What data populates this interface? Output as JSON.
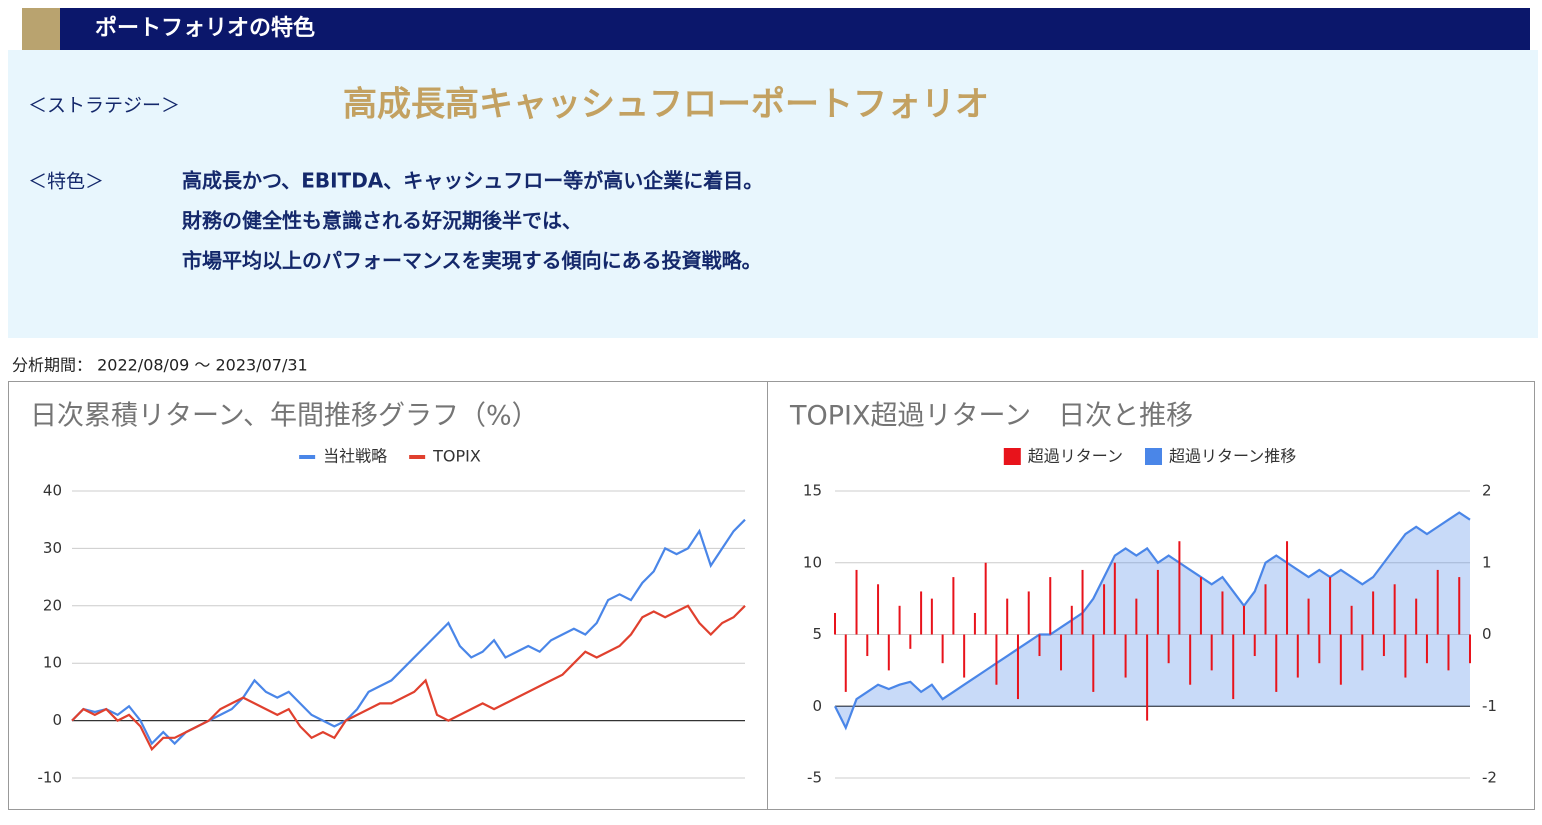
{
  "header": {
    "title": "ポートフォリオの特色"
  },
  "strategy": {
    "label": "＜ストラテジー＞",
    "name": "高成長高キャッシュフローポートフォリオ"
  },
  "features": {
    "label": "＜特色＞",
    "lines": [
      "高成長かつ、EBITDA、キャッシュフロー等が高い企業に着目。",
      "財務の健全性も意識される好況期後半では、",
      "市場平均以上のパフォーマンスを実現する傾向にある投資戦略。"
    ]
  },
  "period": "分析期間： 2022/08/09 ～ 2023/07/31",
  "chart_data": [
    {
      "type": "line",
      "title": "日次累積リターン、年間推移グラフ（%）",
      "ylim": [
        -10,
        40
      ],
      "yticks": [
        -10,
        0,
        10,
        20,
        30,
        40
      ],
      "grid": true,
      "series": [
        {
          "name": "当社戦略",
          "color": "#4a86e8",
          "values": [
            0,
            2,
            1.5,
            2,
            1,
            2.5,
            0,
            -4,
            -2,
            -4,
            -2,
            -1,
            0,
            1,
            2,
            4,
            7,
            5,
            4,
            5,
            3,
            1,
            0,
            -1,
            0,
            2,
            5,
            6,
            7,
            9,
            11,
            13,
            15,
            17,
            13,
            11,
            12,
            14,
            11,
            12,
            13,
            12,
            14,
            15,
            16,
            15,
            17,
            21,
            22,
            21,
            24,
            26,
            30,
            29,
            30,
            33,
            27,
            30,
            33,
            35
          ]
        },
        {
          "name": "TOPIX",
          "color": "#e0402e",
          "values": [
            0,
            2,
            1,
            2,
            0,
            1,
            -1,
            -5,
            -3,
            -3,
            -2,
            -1,
            0,
            2,
            3,
            4,
            3,
            2,
            1,
            2,
            -1,
            -3,
            -2,
            -3,
            0,
            1,
            2,
            3,
            3,
            4,
            5,
            7,
            1,
            0,
            1,
            2,
            3,
            2,
            3,
            4,
            5,
            6,
            7,
            8,
            10,
            12,
            11,
            12,
            13,
            15,
            18,
            19,
            18,
            19,
            20,
            17,
            15,
            17,
            18,
            20
          ]
        }
      ]
    },
    {
      "type": "combo",
      "title": "TOPIX超過リターン　日次と推移",
      "ylim": [
        -5,
        15
      ],
      "yticks": [
        -5,
        0,
        5,
        10,
        15
      ],
      "y2lim": [
        -2,
        2
      ],
      "y2ticks": [
        -2,
        -1,
        0,
        1,
        2
      ],
      "grid": true,
      "series": [
        {
          "name": "超過リターン",
          "type": "bar",
          "axis": "y2",
          "color": "#e8131b",
          "values": [
            0.3,
            -0.8,
            0.9,
            -0.3,
            0.7,
            -0.5,
            0.4,
            -0.2,
            0.6,
            0.5,
            -0.4,
            0.8,
            -0.6,
            0.3,
            1.0,
            -0.7,
            0.5,
            -0.9,
            0.6,
            -0.3,
            0.8,
            -0.5,
            0.4,
            0.9,
            -0.8,
            0.7,
            1.0,
            -0.6,
            0.5,
            -1.2,
            0.9,
            -0.4,
            1.3,
            -0.7,
            0.8,
            -0.5,
            0.6,
            -0.9,
            0.4,
            -0.3,
            0.7,
            -0.8,
            1.3,
            -0.6,
            0.5,
            -0.4,
            0.8,
            -0.7,
            0.4,
            -0.5,
            0.6,
            -0.3,
            0.7,
            -0.6,
            0.5,
            -0.4,
            0.9,
            -0.5,
            0.8,
            -0.4
          ]
        },
        {
          "name": "超過リターン推移",
          "type": "area",
          "color": "#4a86e8",
          "values": [
            0,
            -1.5,
            0.5,
            1,
            1.5,
            1.2,
            1.5,
            1.7,
            1,
            1.5,
            0.5,
            1,
            1.5,
            2,
            2.5,
            3,
            3.5,
            4,
            4.5,
            5,
            5,
            5.5,
            6,
            6.5,
            7.5,
            9,
            10.5,
            11,
            10.5,
            11,
            10,
            10.5,
            10,
            9.5,
            9,
            8.5,
            9,
            8,
            7,
            8,
            10,
            10.5,
            10,
            9.5,
            9,
            9.5,
            9,
            9.5,
            9,
            8.5,
            9,
            10,
            11,
            12,
            12.5,
            12,
            12.5,
            13,
            13.5,
            13
          ]
        }
      ]
    }
  ]
}
